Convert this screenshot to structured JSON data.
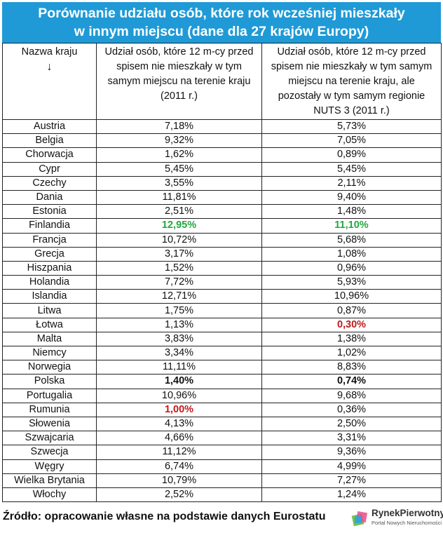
{
  "title_line1": "Porównanie udziału osób, które rok wcześniej mieszkały",
  "title_line2": "w innym miejscu (dane dla 27 krajów Europy)",
  "source": "Źródło: opracowanie własne na podstawie danych Eurostatu",
  "logo": {
    "name": "RynekPierwotny",
    "sub": "Portal Nowych Nieruchomości"
  },
  "colors": {
    "header_bg": "#1f9ad6",
    "max_highlight": "#22a83c",
    "min_highlight": "#c11a1a"
  },
  "chart_data": {
    "type": "table",
    "columns": [
      "Nazwa kraju",
      "Udział osób, które 12 m-cy przed spisem nie mieszkały w tym samym miejscu na terenie kraju (2011 r.)",
      "Udział osób, które 12 m-cy przed spisem nie mieszkały w tym samym miejscu na terenie kraju, ale pozostały w tym samym regionie NUTS 3 (2011 r.)"
    ],
    "sort_arrow": "↓",
    "rows": [
      {
        "country": "Austria",
        "col1": "7,18%",
        "col2": "5,73%"
      },
      {
        "country": "Belgia",
        "col1": "9,32%",
        "col2": "7,05%"
      },
      {
        "country": "Chorwacja",
        "col1": "1,62%",
        "col2": "0,89%"
      },
      {
        "country": "Cypr",
        "col1": "5,45%",
        "col2": "5,45%"
      },
      {
        "country": "Czechy",
        "col1": "3,55%",
        "col2": "2,11%"
      },
      {
        "country": "Dania",
        "col1": "11,81%",
        "col2": "9,40%"
      },
      {
        "country": "Estonia",
        "col1": "2,51%",
        "col2": "1,48%"
      },
      {
        "country": "Finlandia",
        "col1": "12,95%",
        "col2": "11,10%",
        "c1": "green",
        "c2": "green"
      },
      {
        "country": "Francja",
        "col1": "10,72%",
        "col2": "5,68%"
      },
      {
        "country": "Grecja",
        "col1": "3,17%",
        "col2": "1,08%"
      },
      {
        "country": "Hiszpania",
        "col1": "1,52%",
        "col2": "0,96%"
      },
      {
        "country": "Holandia",
        "col1": "7,72%",
        "col2": "5,93%"
      },
      {
        "country": "Islandia",
        "col1": "12,71%",
        "col2": "10,96%"
      },
      {
        "country": "Litwa",
        "col1": "1,75%",
        "col2": "0,87%"
      },
      {
        "country": "Łotwa",
        "col1": "1,13%",
        "col2": "0,30%",
        "c2": "red"
      },
      {
        "country": "Malta",
        "col1": "3,83%",
        "col2": "1,38%"
      },
      {
        "country": "Niemcy",
        "col1": "3,34%",
        "col2": "1,02%"
      },
      {
        "country": "Norwegia",
        "col1": "11,11%",
        "col2": "8,83%"
      },
      {
        "country": "Polska",
        "col1": "1,40%",
        "col2": "0,74%",
        "c1": "bold",
        "c2": "bold"
      },
      {
        "country": "Portugalia",
        "col1": "10,96%",
        "col2": "9,68%"
      },
      {
        "country": "Rumunia",
        "col1": "1,00%",
        "col2": "0,36%",
        "c1": "red"
      },
      {
        "country": "Słowenia",
        "col1": "4,13%",
        "col2": "2,50%"
      },
      {
        "country": "Szwajcaria",
        "col1": "4,66%",
        "col2": "3,31%"
      },
      {
        "country": "Szwecja",
        "col1": "11,12%",
        "col2": "9,36%"
      },
      {
        "country": "Węgry",
        "col1": "6,74%",
        "col2": "4,99%"
      },
      {
        "country": "Wielka Brytania",
        "col1": "10,79%",
        "col2": "7,27%"
      },
      {
        "country": "Włochy",
        "col1": "2,52%",
        "col2": "1,24%"
      }
    ]
  }
}
